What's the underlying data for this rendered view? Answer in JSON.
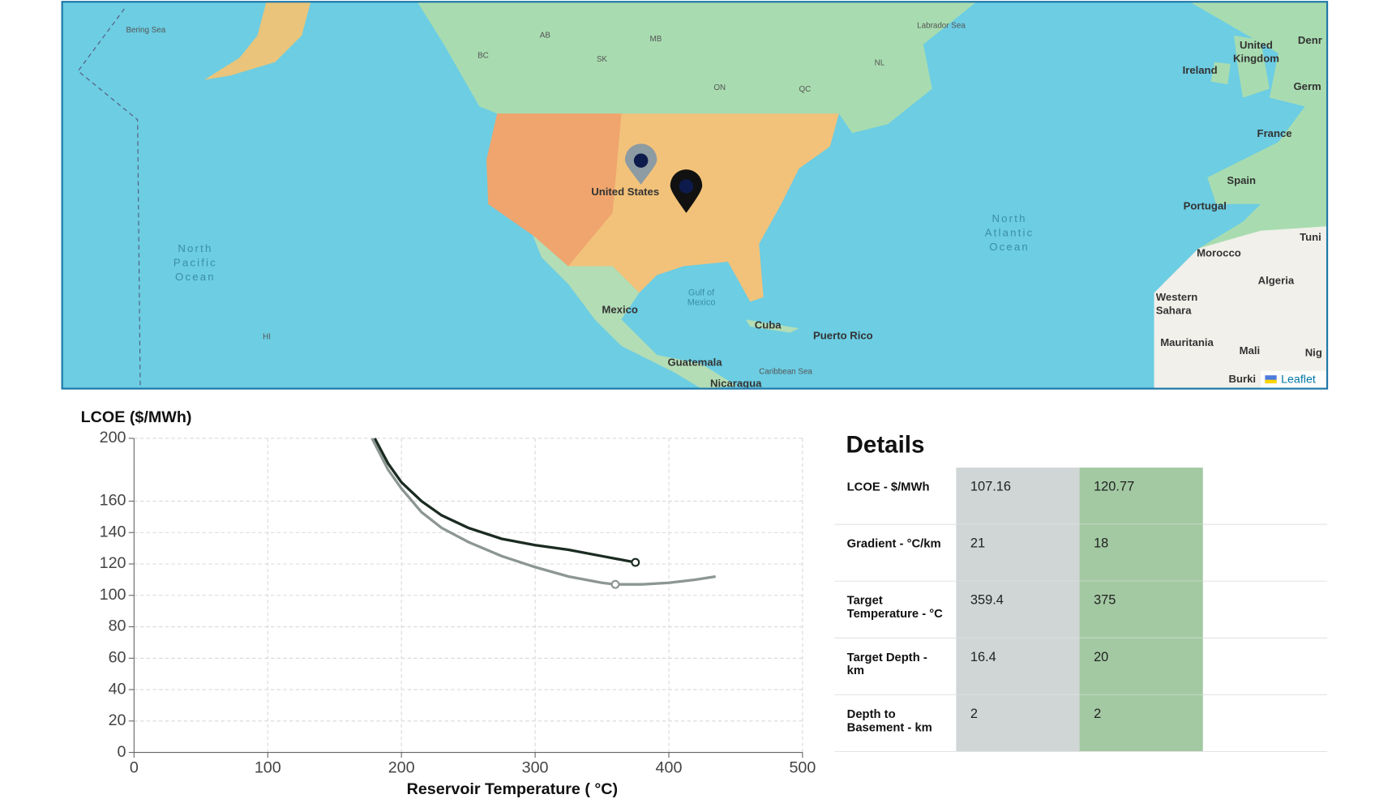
{
  "map": {
    "labels": {
      "bering": "Bering Sea",
      "labrador": "Labrador Sea",
      "ab": "AB",
      "mb": "MB",
      "bc": "BC",
      "sk": "SK",
      "nl": "NL",
      "on": "ON",
      "qc": "QC",
      "us": "United States",
      "mexico": "Mexico",
      "cuba": "Cuba",
      "puerto_rico": "Puerto Rico",
      "guatemala": "Guatemala",
      "nicaragua": "Nicaragua",
      "gulf": "Gulf of Mexico",
      "caribbean": "Caribbean Sea",
      "hi": "HI",
      "north_pacific": "North Pacific Ocean",
      "north_atlantic": "North Atlantic Ocean",
      "ireland": "Ireland",
      "uk": "United Kingdom",
      "denr": "Denr",
      "germ": "Germ",
      "france": "France",
      "spain": "Spain",
      "portugal": "Portugal",
      "tuni": "Tuni",
      "morocco": "Morocco",
      "algeria": "Algeria",
      "western_sahara": "Western Sahara",
      "mauritania": "Mauritania",
      "mali": "Mali",
      "nig": "Nig",
      "burki": "Burki"
    },
    "attribution": "Leaflet"
  },
  "chart_data": {
    "type": "line",
    "y_label": "LCOE ($/MWh)",
    "x_label": "Reservoir Temperature ( °C)",
    "xlim": [
      0,
      500
    ],
    "xticks": [
      0,
      100,
      200,
      300,
      400,
      500
    ],
    "ylim": [
      0,
      200
    ],
    "yticks": [
      0,
      20,
      40,
      60,
      80,
      100,
      120,
      140,
      160,
      200
    ],
    "grid": true,
    "series": [
      {
        "color": "#1b2b22",
        "highlight_index": 10,
        "x": [
          180,
          190,
          200,
          215,
          230,
          250,
          275,
          300,
          325,
          350,
          375
        ],
        "values": [
          200,
          184,
          172,
          160,
          151,
          143,
          136,
          132,
          129,
          125,
          121
        ]
      },
      {
        "color": "#8c9692",
        "highlight_index": 10,
        "x": [
          178,
          190,
          200,
          215,
          230,
          250,
          275,
          300,
          325,
          350,
          360,
          380,
          400,
          420,
          435
        ],
        "values": [
          200,
          180,
          168,
          153,
          143,
          134,
          125,
          118,
          112,
          108,
          107,
          107,
          108,
          110,
          112
        ]
      }
    ]
  },
  "details": {
    "title": "Details",
    "rows": [
      [
        "LCOE - $/MWh",
        107.16,
        120.77
      ],
      [
        "Gradient - °C/km",
        21,
        18
      ],
      [
        "Target Temperature - °C",
        359.4,
        375
      ],
      [
        "Target Depth - km",
        16.4,
        20
      ],
      [
        "Depth to Basement - km",
        2,
        2
      ]
    ]
  }
}
